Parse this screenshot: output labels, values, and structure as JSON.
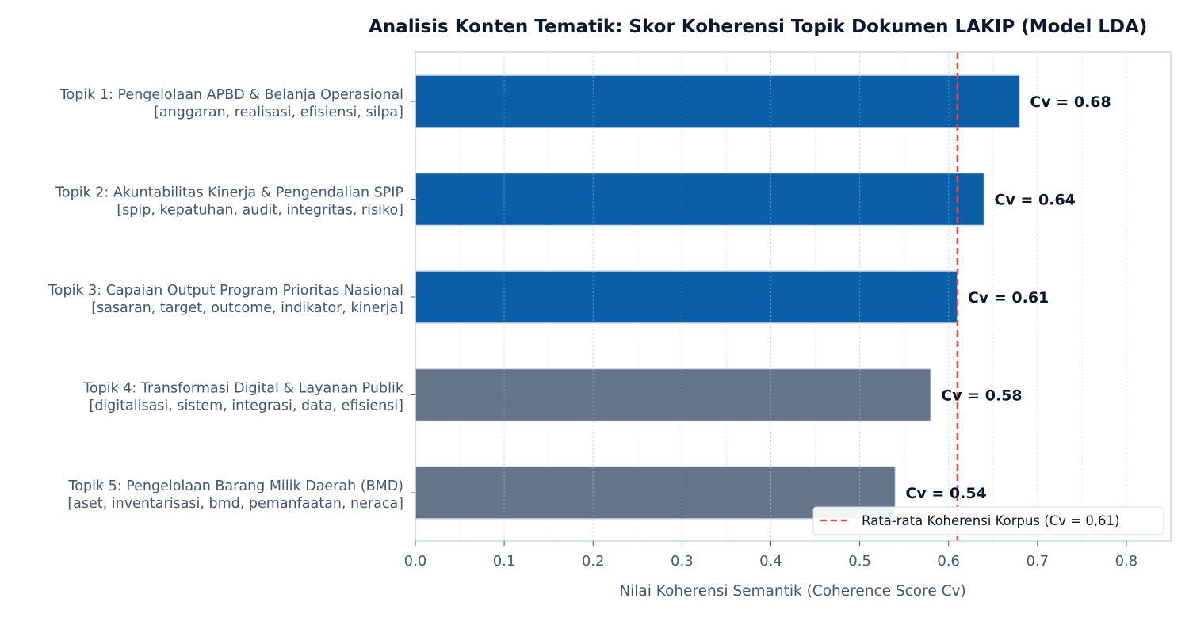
{
  "chart_data": {
    "type": "bar",
    "orientation": "horizontal",
    "title": "Analisis Konten Tematik: Skor Koherensi Topik Dokumen LAKIP (Model LDA)",
    "xlabel": "Nilai Koherensi Semantik (Coherence Score Cv)",
    "ylabel": "",
    "xlim": [
      0,
      0.85
    ],
    "xticks": [
      "0.0",
      "0.1",
      "0.2",
      "0.3",
      "0.4",
      "0.5",
      "0.6",
      "0.7",
      "0.8"
    ],
    "grid": "vertical dotted",
    "categories": [
      {
        "line1": "Topik 1: Pengelolaan APBD & Belanja Operasional",
        "line2": "[anggaran, realisasi, efisiensi, silpa]"
      },
      {
        "line1": "Topik 2: Akuntabilitas Kinerja & Pengendalian SPIP",
        "line2": "[spip, kepatuhan, audit, integritas, risiko]"
      },
      {
        "line1": "Topik 3: Capaian Output Program Prioritas Nasional",
        "line2": "[sasaran, target, outcome, indikator, kinerja]"
      },
      {
        "line1": "Topik 4: Transformasi Digital & Layanan Publik",
        "line2": "[digitalisasi, sistem, integrasi, data, efisiensi]"
      },
      {
        "line1": "Topik 5: Pengelolaan Barang Milik Daerah (BMD)",
        "line2": "[aset, inventarisasi, bmd, pemanfaatan, neraca]"
      }
    ],
    "values": [
      0.68,
      0.64,
      0.61,
      0.58,
      0.54
    ],
    "value_labels": [
      "Cv = 0.68",
      "Cv = 0.64",
      "Cv = 0.61",
      "Cv = 0.58",
      "Cv = 0.54"
    ],
    "bar_colors": [
      "#0b5ea8",
      "#0b5ea8",
      "#0b5ea8",
      "#64748b",
      "#64748b"
    ],
    "reference_line": {
      "value": 0.61,
      "label": "Rata-rata Koherensi Korpus (Cv = 0,61)",
      "color": "#ef4444",
      "style": "dashed"
    },
    "legend_position": "bottom-right"
  }
}
